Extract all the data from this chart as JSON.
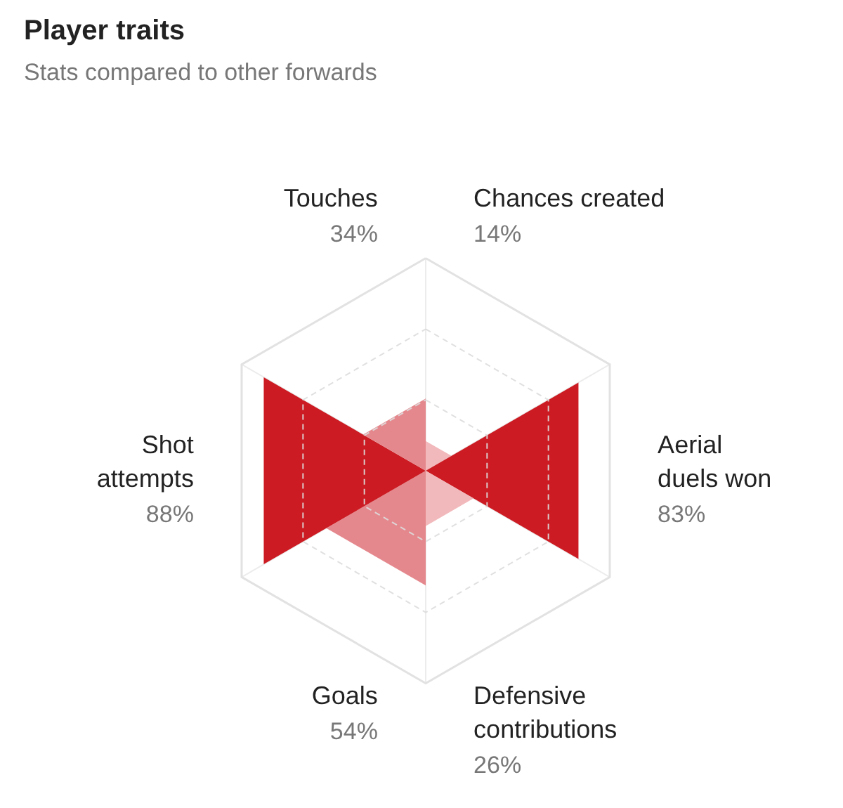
{
  "chart_data": {
    "type": "other",
    "title": "Player traits",
    "subtitle": "Stats compared to other forwards",
    "categories": [
      "Chances created",
      "Aerial duels won",
      "Defensive contributions",
      "Goals",
      "Shot attempts",
      "Touches"
    ],
    "values": [
      14,
      83,
      26,
      54,
      88,
      34
    ],
    "colors": [
      "#f2b9bc",
      "#cc1b22",
      "#f2b9bc",
      "#e5888d",
      "#cc1b22",
      "#e5888d"
    ],
    "value_labels": [
      "14%",
      "83%",
      "26%",
      "54%",
      "88%",
      "34%"
    ]
  }
}
